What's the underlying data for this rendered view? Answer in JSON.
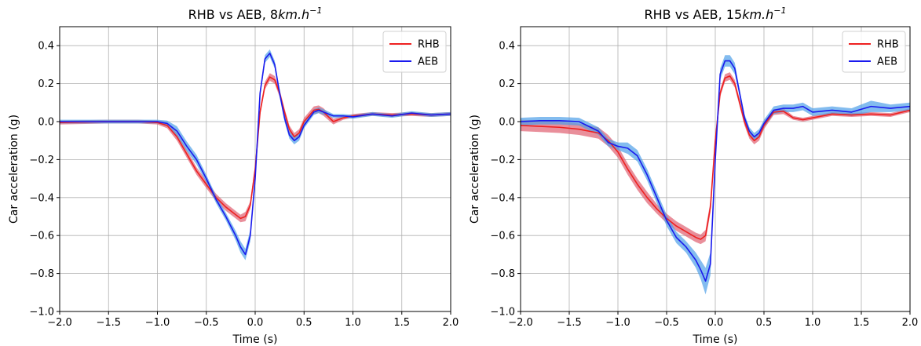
{
  "chart_data": [
    {
      "type": "line",
      "title": "RHB vs AEB, 8km.h^-1",
      "title_main": "RHB vs AEB, 8",
      "title_unit": "km.h",
      "title_exp": "−1",
      "xlabel": "Time (s)",
      "ylabel": "Car acceleration (g)",
      "xlim": [
        -2.0,
        2.0
      ],
      "ylim": [
        -1.0,
        0.5
      ],
      "xticks": [
        -2.0,
        -1.5,
        -1.0,
        -0.5,
        0.0,
        0.5,
        1.0,
        1.5,
        2.0
      ],
      "xtick_labels": [
        "−2.0",
        "−1.5",
        "−1.0",
        "−0.5",
        "0.0",
        "0.5",
        "1.0",
        "1.5",
        "2.0"
      ],
      "yticks": [
        -1.0,
        -0.8,
        -0.6,
        -0.4,
        -0.2,
        0.0,
        0.2,
        0.4
      ],
      "ytick_labels": [
        "−1.0",
        "−0.8",
        "−0.6",
        "−0.4",
        "−0.2",
        "0.0",
        "0.2",
        "0.4"
      ],
      "grid": true,
      "legend_position": "top-right",
      "series": [
        {
          "name": "RHB",
          "color": "#ee2020",
          "band_color": "#e06070",
          "x": [
            -2.0,
            -1.5,
            -1.2,
            -1.0,
            -0.9,
            -0.8,
            -0.7,
            -0.6,
            -0.5,
            -0.4,
            -0.3,
            -0.2,
            -0.15,
            -0.1,
            -0.05,
            0.0,
            0.05,
            0.1,
            0.15,
            0.2,
            0.25,
            0.3,
            0.35,
            0.4,
            0.45,
            0.5,
            0.6,
            0.65,
            0.7,
            0.8,
            0.9,
            1.0,
            1.2,
            1.4,
            1.6,
            1.8,
            2.0
          ],
          "y": [
            -0.005,
            0.0,
            0.0,
            -0.005,
            -0.02,
            -0.08,
            -0.17,
            -0.26,
            -0.33,
            -0.4,
            -0.45,
            -0.49,
            -0.51,
            -0.5,
            -0.44,
            -0.25,
            0.05,
            0.19,
            0.235,
            0.22,
            0.15,
            0.05,
            -0.04,
            -0.08,
            -0.06,
            0.0,
            0.06,
            0.065,
            0.05,
            0.0,
            0.02,
            0.03,
            0.04,
            0.035,
            0.04,
            0.035,
            0.04
          ],
          "band": [
            0.01,
            0.01,
            0.01,
            0.01,
            0.015,
            0.02,
            0.02,
            0.02,
            0.02,
            0.02,
            0.02,
            0.02,
            0.02,
            0.025,
            0.02,
            0.02,
            0.02,
            0.02,
            0.02,
            0.02,
            0.02,
            0.02,
            0.02,
            0.02,
            0.02,
            0.02,
            0.02,
            0.02,
            0.02,
            0.015,
            0.01,
            0.01,
            0.01,
            0.01,
            0.01,
            0.01,
            0.01
          ]
        },
        {
          "name": "AEB",
          "color": "#1a1aee",
          "band_color": "#4f9fe8",
          "x": [
            -2.0,
            -1.5,
            -1.2,
            -1.0,
            -0.9,
            -0.8,
            -0.7,
            -0.6,
            -0.5,
            -0.4,
            -0.3,
            -0.2,
            -0.15,
            -0.1,
            -0.05,
            0.0,
            0.05,
            0.1,
            0.15,
            0.2,
            0.25,
            0.3,
            0.35,
            0.4,
            0.45,
            0.5,
            0.6,
            0.65,
            0.7,
            0.8,
            0.9,
            1.0,
            1.2,
            1.4,
            1.6,
            1.8,
            2.0
          ],
          "y": [
            0.0,
            0.0,
            0.0,
            0.0,
            -0.01,
            -0.05,
            -0.13,
            -0.2,
            -0.3,
            -0.41,
            -0.5,
            -0.6,
            -0.66,
            -0.7,
            -0.6,
            -0.3,
            0.15,
            0.33,
            0.36,
            0.3,
            0.15,
            0.02,
            -0.07,
            -0.1,
            -0.08,
            -0.02,
            0.05,
            0.06,
            0.05,
            0.03,
            0.03,
            0.025,
            0.04,
            0.03,
            0.045,
            0.035,
            0.04
          ],
          "band": [
            0.01,
            0.01,
            0.01,
            0.01,
            0.015,
            0.025,
            0.025,
            0.025,
            0.02,
            0.02,
            0.02,
            0.025,
            0.03,
            0.03,
            0.03,
            0.025,
            0.02,
            0.02,
            0.02,
            0.02,
            0.02,
            0.02,
            0.02,
            0.02,
            0.02,
            0.015,
            0.015,
            0.015,
            0.015,
            0.01,
            0.01,
            0.01,
            0.01,
            0.01,
            0.01,
            0.01,
            0.01
          ]
        }
      ]
    },
    {
      "type": "line",
      "title": "RHB vs AEB, 15km.h^-1",
      "title_main": "RHB vs AEB, 15",
      "title_unit": "km.h",
      "title_exp": "−1",
      "xlabel": "Time (s)",
      "ylabel": "Car acceleration (g)",
      "xlim": [
        -2.0,
        2.0
      ],
      "ylim": [
        -1.0,
        0.5
      ],
      "xticks": [
        -2.0,
        -1.5,
        -1.0,
        -0.5,
        0.0,
        0.5,
        1.0,
        1.5,
        2.0
      ],
      "xtick_labels": [
        "−2.0",
        "−1.5",
        "−1.0",
        "−0.5",
        "0.0",
        "0.5",
        "1.0",
        "1.5",
        "2.0"
      ],
      "yticks": [
        -1.0,
        -0.8,
        -0.6,
        -0.4,
        -0.2,
        0.0,
        0.2,
        0.4
      ],
      "ytick_labels": [
        "−1.0",
        "−0.8",
        "−0.6",
        "−0.4",
        "−0.2",
        "0.0",
        "0.2",
        "0.4"
      ],
      "grid": true,
      "legend_position": "top-right",
      "series": [
        {
          "name": "RHB",
          "color": "#ee2020",
          "band_color": "#e06070",
          "x": [
            -2.0,
            -1.8,
            -1.6,
            -1.4,
            -1.2,
            -1.1,
            -1.0,
            -0.9,
            -0.8,
            -0.7,
            -0.6,
            -0.5,
            -0.4,
            -0.3,
            -0.2,
            -0.15,
            -0.1,
            -0.05,
            0.0,
            0.05,
            0.1,
            0.15,
            0.2,
            0.25,
            0.3,
            0.35,
            0.4,
            0.45,
            0.5,
            0.6,
            0.7,
            0.8,
            0.9,
            1.0,
            1.2,
            1.4,
            1.6,
            1.8,
            2.0
          ],
          "y": [
            -0.02,
            -0.025,
            -0.03,
            -0.04,
            -0.06,
            -0.1,
            -0.16,
            -0.25,
            -0.33,
            -0.4,
            -0.46,
            -0.51,
            -0.55,
            -0.58,
            -0.61,
            -0.62,
            -0.6,
            -0.45,
            -0.1,
            0.15,
            0.23,
            0.24,
            0.2,
            0.1,
            0.0,
            -0.07,
            -0.1,
            -0.08,
            -0.02,
            0.05,
            0.055,
            0.02,
            0.01,
            0.02,
            0.04,
            0.035,
            0.04,
            0.035,
            0.06
          ],
          "band": [
            0.03,
            0.03,
            0.03,
            0.03,
            0.03,
            0.03,
            0.03,
            0.03,
            0.03,
            0.03,
            0.025,
            0.025,
            0.025,
            0.025,
            0.025,
            0.025,
            0.03,
            0.03,
            0.03,
            0.02,
            0.02,
            0.02,
            0.02,
            0.02,
            0.02,
            0.02,
            0.02,
            0.02,
            0.02,
            0.015,
            0.015,
            0.01,
            0.01,
            0.01,
            0.01,
            0.01,
            0.01,
            0.01,
            0.01
          ]
        },
        {
          "name": "AEB",
          "color": "#1a1aee",
          "band_color": "#4f9fe8",
          "x": [
            -2.0,
            -1.8,
            -1.6,
            -1.4,
            -1.2,
            -1.1,
            -1.0,
            -0.9,
            -0.8,
            -0.7,
            -0.6,
            -0.5,
            -0.4,
            -0.3,
            -0.2,
            -0.15,
            -0.1,
            -0.05,
            0.0,
            0.05,
            0.1,
            0.15,
            0.2,
            0.25,
            0.3,
            0.35,
            0.4,
            0.45,
            0.5,
            0.6,
            0.7,
            0.8,
            0.9,
            1.0,
            1.2,
            1.4,
            1.6,
            1.8,
            2.0
          ],
          "y": [
            0.0,
            0.005,
            0.005,
            0.0,
            -0.05,
            -0.11,
            -0.13,
            -0.14,
            -0.18,
            -0.28,
            -0.4,
            -0.52,
            -0.61,
            -0.66,
            -0.73,
            -0.78,
            -0.84,
            -0.75,
            -0.2,
            0.25,
            0.32,
            0.32,
            0.28,
            0.15,
            0.02,
            -0.05,
            -0.08,
            -0.06,
            -0.01,
            0.06,
            0.07,
            0.07,
            0.08,
            0.05,
            0.06,
            0.05,
            0.08,
            0.07,
            0.08
          ],
          "band": [
            0.02,
            0.02,
            0.02,
            0.02,
            0.02,
            0.02,
            0.02,
            0.03,
            0.03,
            0.03,
            0.03,
            0.03,
            0.03,
            0.03,
            0.04,
            0.05,
            0.07,
            0.06,
            0.04,
            0.03,
            0.03,
            0.03,
            0.03,
            0.02,
            0.02,
            0.02,
            0.02,
            0.02,
            0.02,
            0.02,
            0.02,
            0.02,
            0.02,
            0.02,
            0.02,
            0.02,
            0.03,
            0.02,
            0.02
          ]
        }
      ]
    }
  ]
}
